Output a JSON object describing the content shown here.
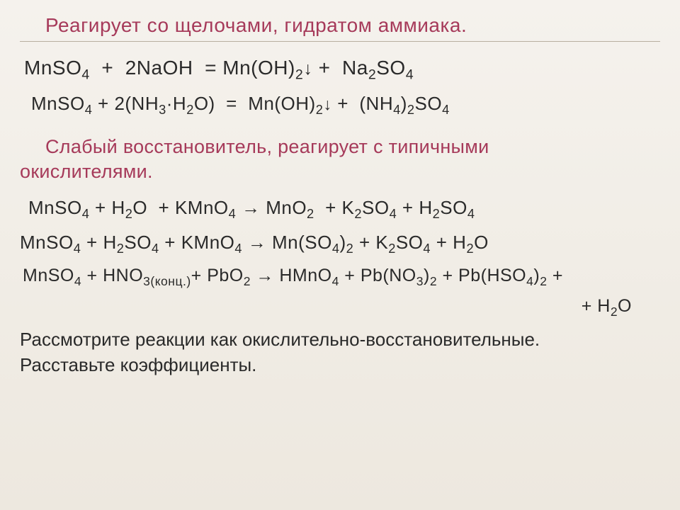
{
  "colors": {
    "accent": "#a63a5a",
    "text": "#2a2a2a",
    "bg_top": "#f5f2ed",
    "bg_bottom": "#ede8df",
    "rule": "#b8b0a0"
  },
  "title": "Реагирует со щелочами, гидратом аммиака.",
  "equations": {
    "eq1_html": "MnSO<sub>4</sub>&nbsp;&nbsp;+&nbsp;&nbsp;2NaOH&nbsp;&nbsp;=&nbsp;Mn(OH)<sub>2</sub><span class='arrow-down'>↓</span>&nbsp;+&nbsp;&nbsp;Na<sub>2</sub>SO<sub>4</sub>",
    "eq2_html": "MnSO<sub>4</sub> + 2(NH<sub>3</sub>·H<sub>2</sub>O)&nbsp;&nbsp;=&nbsp;&nbsp;Mn(OH)<sub>2</sub><span class='arrow-down'>↓</span> +&nbsp;&nbsp;(NH<sub>4</sub>)<sub>2</sub>SO<sub>4</sub>",
    "eq3_html": "MnSO<sub>4</sub> + H<sub>2</sub>O&nbsp;&nbsp;+ KMnO<sub>4</sub> → MnO<sub>2</sub>&nbsp;&nbsp;+ K<sub>2</sub>SO<sub>4</sub> + H<sub>2</sub>SO<sub>4</sub>",
    "eq4_html": "MnSO<sub>4</sub> + H<sub>2</sub>SO<sub>4</sub> + KMnO<sub>4</sub> → Mn(SO<sub>4</sub>)<sub>2</sub> + K<sub>2</sub>SO<sub>4</sub> + H<sub>2</sub>O",
    "eq5_line1_html": "MnSO<sub>4</sub> + HNO<sub>3(конц.)</sub>+ PbO<sub>2</sub> → HMnO<sub>4</sub> + Pb(NO<sub>3</sub>)<sub>2</sub> + Pb(HSO<sub>4</sub>)<sub>2</sub> +",
    "eq5_line2_html": "+ H<sub>2</sub>O"
  },
  "subtitle_line1": "Слабый восстановитель, реагирует с типичными",
  "subtitle_line2": "окислителями.",
  "note_line1": "Рассмотрите  реакции как окислительно-восстановительные.",
  "note_line2": "Расставьте коэффициенты.",
  "typography": {
    "title_fontsize": 28,
    "eq_fontsize": 28,
    "eq_small_fontsize": 26,
    "note_fontsize": 26
  }
}
